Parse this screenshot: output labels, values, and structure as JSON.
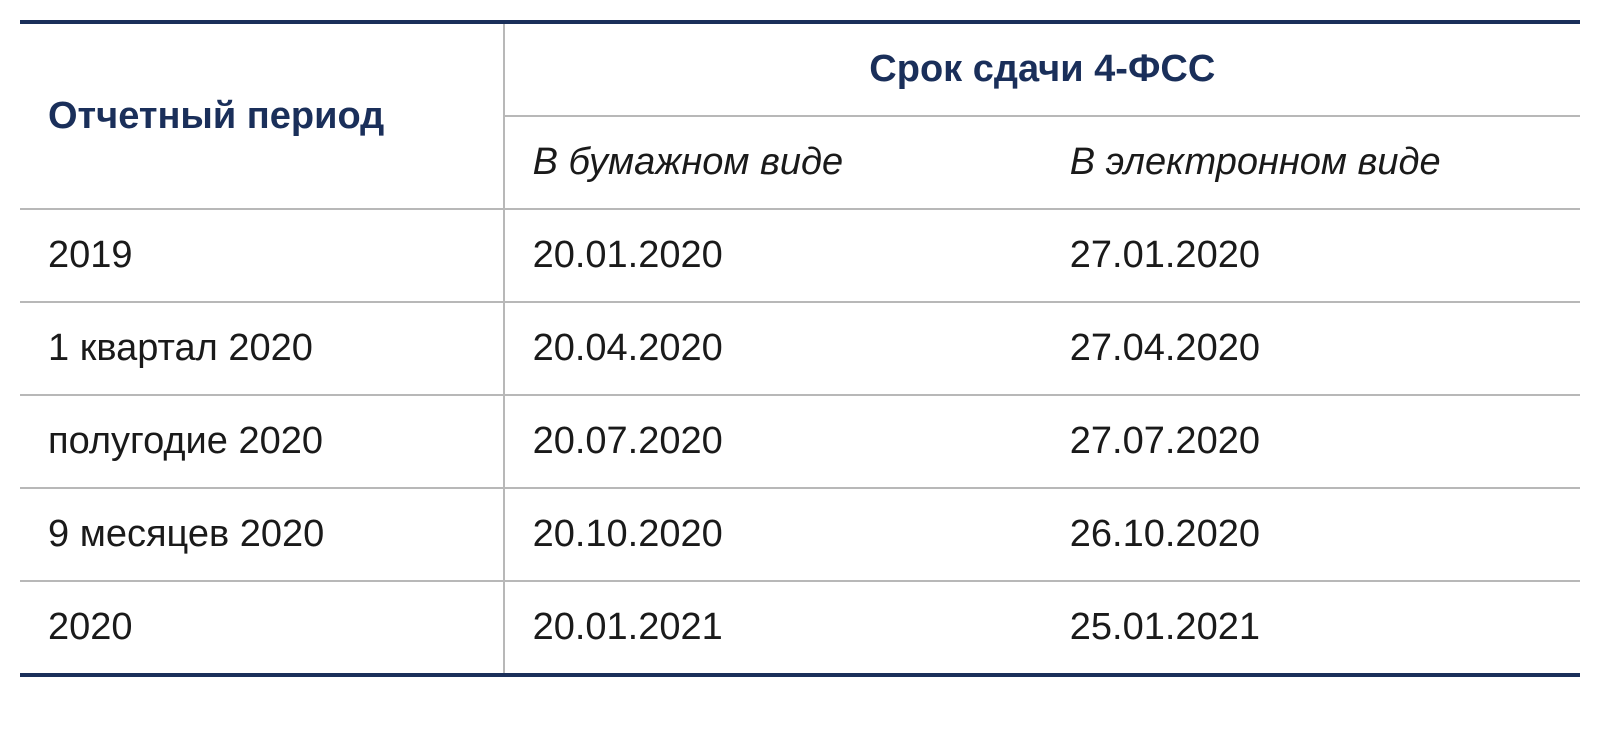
{
  "table": {
    "type": "table",
    "border_color": "#1a2f5a",
    "border_thick_width": 4,
    "border_thin_width": 2,
    "border_thin_color": "#b8b8b8",
    "background_color": "#ffffff",
    "header_text_color": "#1a2f5a",
    "cell_text_color": "#1a1a1a",
    "font_size": 38,
    "header_font_weight": 700,
    "cell_font_weight": 400,
    "cell_padding": "24px 28px",
    "column_widths": [
      "31%",
      "34.5%",
      "34.5%"
    ],
    "headers": {
      "period": "Отчетный период",
      "deadline_group": "Срок сдачи 4-ФСС",
      "paper": "В бумажном виде",
      "electronic": "В электронном виде"
    },
    "rows": [
      {
        "period": "2019",
        "paper": "20.01.2020",
        "electronic": "27.01.2020"
      },
      {
        "period": "1 квартал 2020",
        "paper": "20.04.2020",
        "electronic": "27.04.2020"
      },
      {
        "period": "полугодие 2020",
        "paper": "20.07.2020",
        "electronic": "27.07.2020"
      },
      {
        "period": "9 месяцев 2020",
        "paper": "20.10.2020",
        "electronic": "26.10.2020"
      },
      {
        "period": "2020",
        "paper": "20.01.2021",
        "electronic": "25.01.2021"
      }
    ]
  }
}
